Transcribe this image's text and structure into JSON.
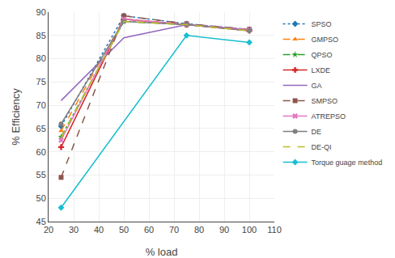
{
  "chart_data": {
    "type": "line",
    "xlabel": "% load",
    "ylabel": "% Efficiency",
    "xlim": [
      20,
      110
    ],
    "ylim": [
      45,
      90
    ],
    "xticks": [
      20,
      30,
      40,
      50,
      60,
      70,
      80,
      90,
      100,
      110
    ],
    "yticks": [
      45,
      50,
      55,
      60,
      65,
      70,
      75,
      80,
      85,
      90
    ],
    "grid": true,
    "legend": "right",
    "series": [
      {
        "name": "SPSO",
        "x": [
          25,
          50,
          75,
          100
        ],
        "values": [
          65.5,
          89.2,
          87.5,
          86.3
        ],
        "line_style": "dot",
        "marker": "diamond"
      },
      {
        "name": "GMPSO",
        "x": [
          25,
          50,
          75,
          100
        ],
        "values": [
          64.5,
          88.5,
          87.3,
          86.2
        ],
        "line_style": "dash",
        "marker": "triangle-up"
      },
      {
        "name": "QPSO",
        "x": [
          25,
          50,
          75,
          100
        ],
        "values": [
          63.2,
          88.0,
          87.3,
          86.2
        ],
        "line_style": "dashdot",
        "marker": "star"
      },
      {
        "name": "LXDE",
        "x": [
          25,
          50,
          75,
          100
        ],
        "values": [
          61.0,
          88.5,
          87.3,
          86.0
        ],
        "line_style": "solid",
        "marker": "cross"
      },
      {
        "name": "GA",
        "x": [
          25,
          50,
          75,
          100
        ],
        "values": [
          71.0,
          84.5,
          87.3,
          86.2
        ],
        "line_style": "solid"
      },
      {
        "name": "SMPSO",
        "x": [
          25,
          50,
          75,
          100
        ],
        "values": [
          54.5,
          89.2,
          87.5,
          86.3
        ],
        "line_style": "dash",
        "marker": "square"
      },
      {
        "name": "ATREPSO",
        "x": [
          25,
          50,
          75,
          100
        ],
        "values": [
          62.5,
          88.5,
          87.3,
          86.2
        ],
        "line_style": "solid",
        "marker": "x"
      },
      {
        "name": "DE",
        "x": [
          25,
          50,
          75,
          100
        ],
        "values": [
          66.0,
          88.0,
          87.3,
          86.0
        ],
        "line_style": "solid",
        "marker": "circle"
      },
      {
        "name": "DE-QI",
        "x": [
          25,
          50,
          75,
          100
        ],
        "values": [
          63.0,
          88.0,
          87.3,
          86.0
        ],
        "line_style": "dash"
      },
      {
        "name": "Torque guage method",
        "x": [
          25,
          75,
          100
        ],
        "values": [
          48.0,
          85.0,
          83.5
        ],
        "line_style": "solid",
        "marker": "diamond"
      }
    ]
  }
}
